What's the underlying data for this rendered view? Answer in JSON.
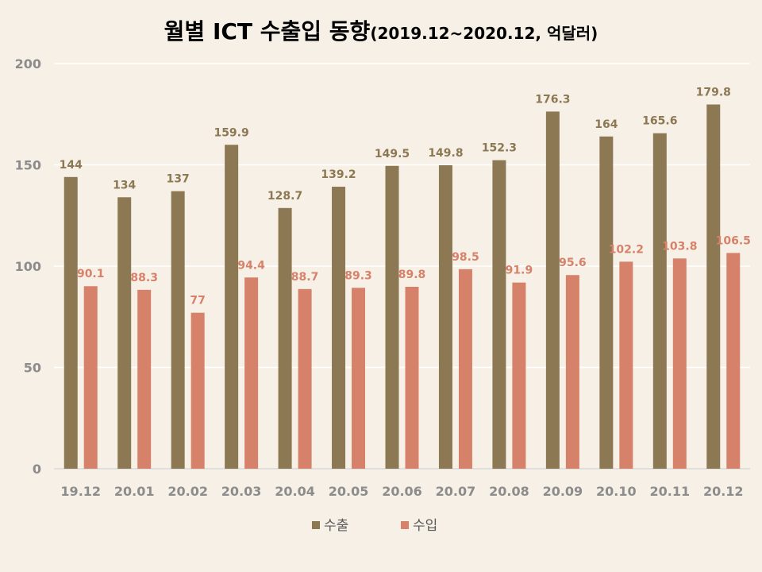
{
  "title": {
    "main": "월별 ICT 수출입 동향",
    "sub": "(2019.12~2020.12, 억달러)"
  },
  "chart_data": {
    "type": "bar",
    "categories": [
      "19.12",
      "20.01",
      "20.02",
      "20.03",
      "20.04",
      "20.05",
      "20.06",
      "20.07",
      "20.08",
      "20.09",
      "20.10",
      "20.11",
      "20.12"
    ],
    "series": [
      {
        "name": "수출",
        "color": "#8c7853",
        "label_color": "#8c7853",
        "values": [
          144,
          134,
          137,
          159.9,
          128.7,
          139.2,
          149.5,
          149.8,
          152.3,
          176.3,
          164,
          165.6,
          179.8
        ],
        "labels": [
          "144",
          "134",
          "137",
          "159.9",
          "128.7",
          "139.2",
          "149.5",
          "149.8",
          "152.3",
          "176.3",
          "164",
          "165.6",
          "179.8"
        ]
      },
      {
        "name": "수입",
        "color": "#d6826a",
        "label_color": "#d6826a",
        "values": [
          90.1,
          88.3,
          77,
          94.4,
          88.7,
          89.3,
          89.8,
          98.5,
          91.9,
          95.6,
          102.2,
          103.8,
          106.5
        ],
        "labels": [
          "90.1",
          "88.3",
          "77",
          "94.4",
          "88.7",
          "89.3",
          "89.8",
          "98.5",
          "91.9",
          "95.6",
          "102.2",
          "103.8",
          "106.5"
        ]
      }
    ],
    "xlabel": "",
    "ylabel": "",
    "ylim": [
      0,
      200
    ],
    "yticks": [
      "0",
      "50",
      "100",
      "150",
      "200"
    ],
    "ytick_values": [
      0,
      50,
      100,
      150,
      200
    ],
    "grid": true,
    "legend_position": "bottom"
  }
}
